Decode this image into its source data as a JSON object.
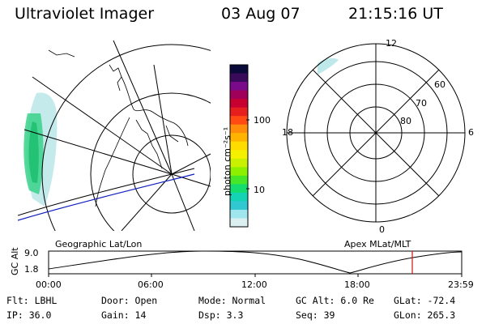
{
  "header": {
    "title": "Ultraviolet Imager",
    "date": "03 Aug 07",
    "time": "21:15:16 UT"
  },
  "colorbar": {
    "unit_label": "photon cm⁻²s⁻¹",
    "ticks": [
      "100",
      "10"
    ],
    "colors": [
      "#0a0a3a",
      "#3a0a5a",
      "#7a0a8a",
      "#a0005a",
      "#c80032",
      "#e61e1e",
      "#ff4a14",
      "#ff8c0a",
      "#ffb400",
      "#ffdc00",
      "#f5f000",
      "#c8f000",
      "#8cf000",
      "#46e628",
      "#14dc6e",
      "#14d2b4",
      "#32c8d2",
      "#a0e6ee",
      "#dcf0f2"
    ]
  },
  "polar": {
    "mlt_labels": [
      "12",
      "18",
      "6",
      "0"
    ],
    "lat_labels": [
      "60",
      "70",
      "80"
    ]
  },
  "map_labels": {
    "left": "Geographic Lat/Lon",
    "right": "Apex MLat/MLT"
  },
  "alt_plot": {
    "ylabel": "GC Alt",
    "y_max": "9.0",
    "y_min": "1.8",
    "x_ticks": [
      "00:00",
      "06:00",
      "12:00",
      "18:00",
      "23:59"
    ],
    "current_time_color": "#d01010"
  },
  "info": {
    "filter": "Flt: LBHL",
    "ip": "IP: 36.0",
    "door": "Door: Open",
    "gain": "Gain: 14",
    "mode": "Mode: Normal",
    "dsp": "Dsp:     3.3",
    "gc_alt": "GC Alt: 6.0 Re",
    "seq": "Seq: 39",
    "glat": "GLat: -72.4",
    "glon": "GLon: 265.3"
  }
}
